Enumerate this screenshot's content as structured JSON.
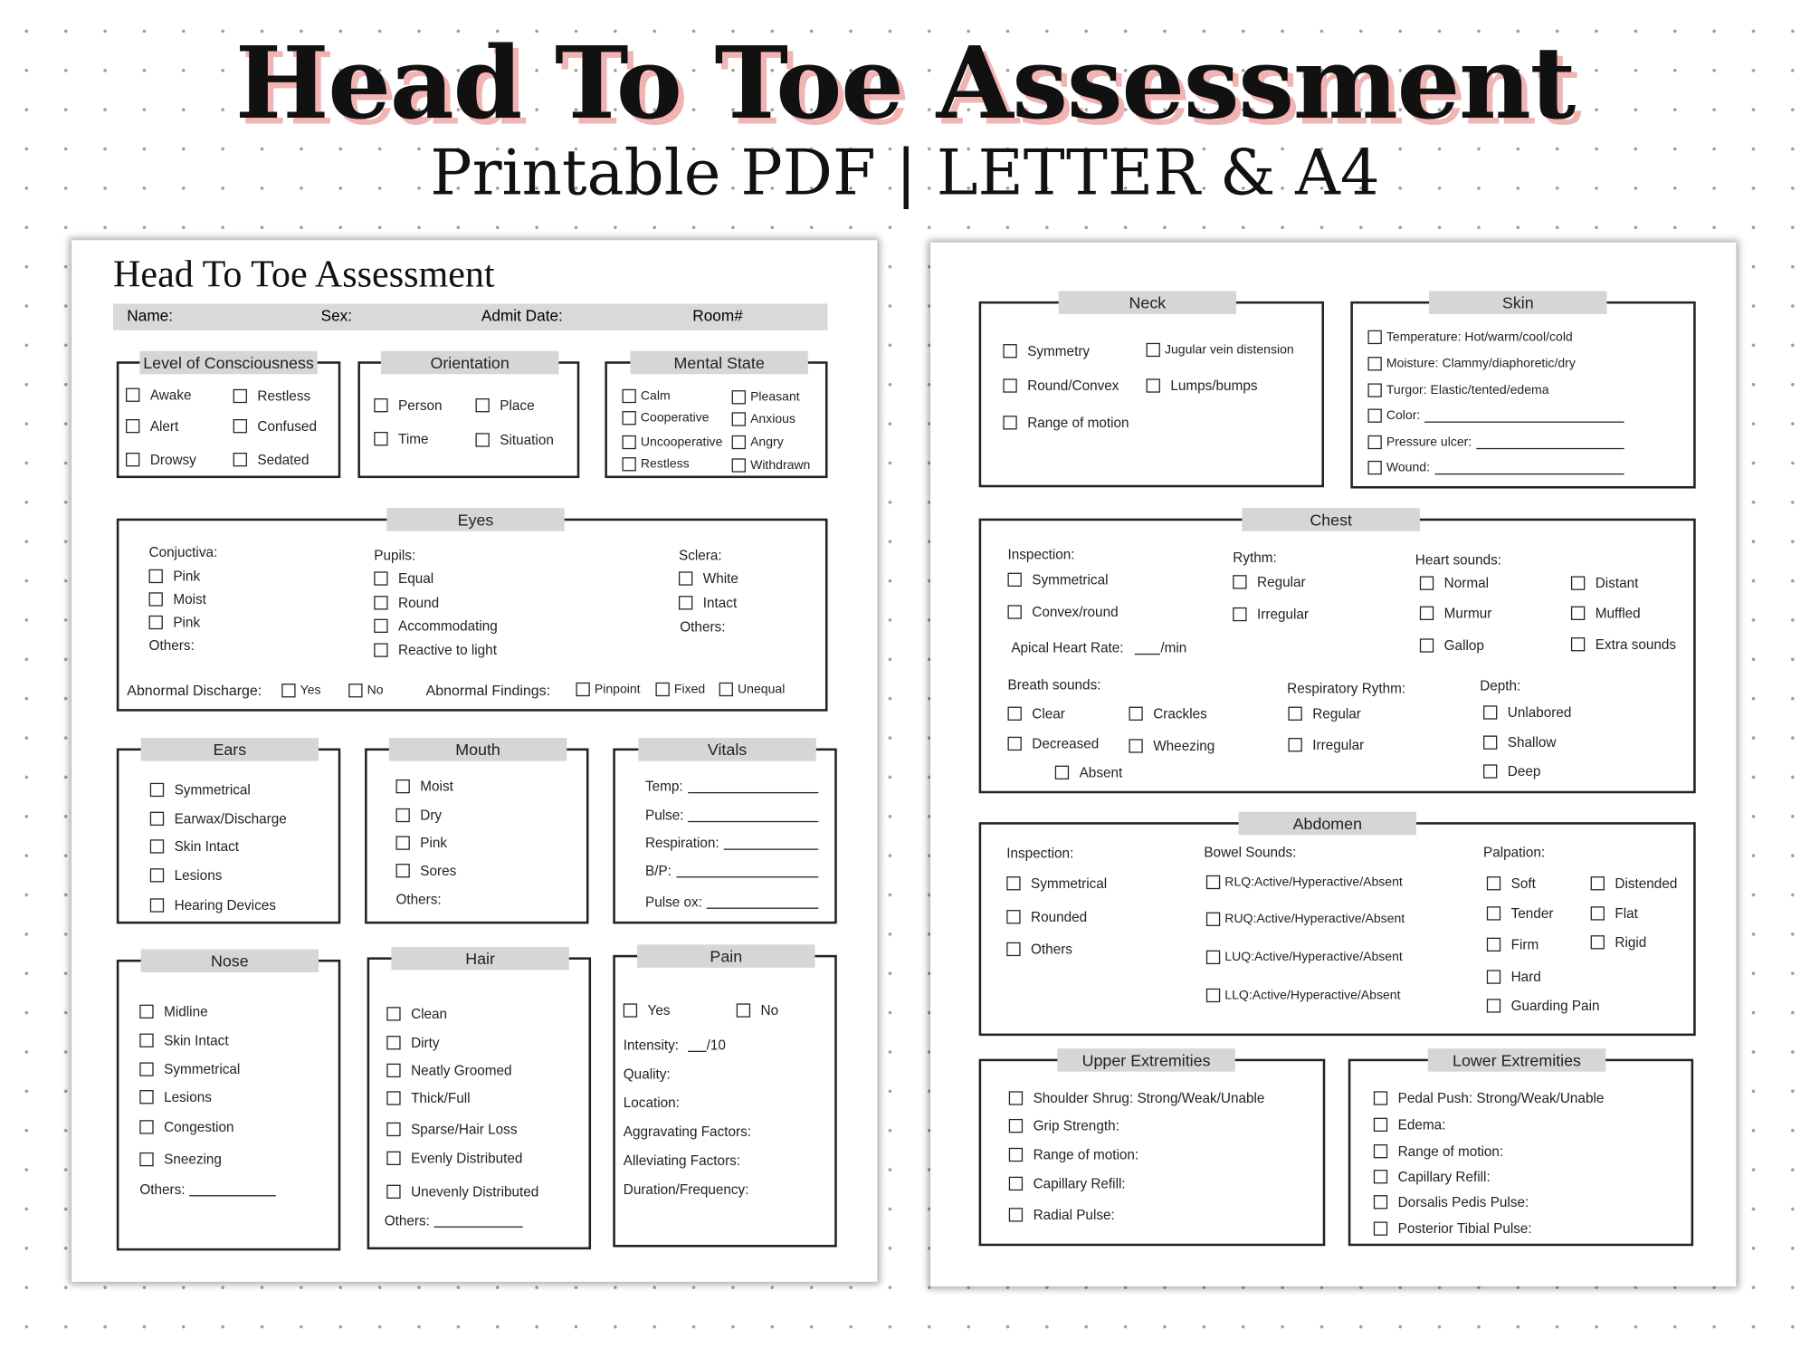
{
  "banner": {
    "title": "Head To Toe Assessment",
    "subtitle": "Printable PDF | LETTER & A4"
  },
  "page1": {
    "title": "Head To Toe Assessment",
    "info": {
      "name": "Name:",
      "sex": "Sex:",
      "admit": "Admit Date:",
      "room": "Room#"
    },
    "loc": {
      "title": "Level of Consciousness",
      "items": [
        "Awake",
        "Restless",
        "Alert",
        "Confused",
        "Drowsy",
        "Sedated"
      ]
    },
    "orientation": {
      "title": "Orientation",
      "items": [
        "Person",
        "Place",
        "Time",
        "Situation"
      ]
    },
    "mental": {
      "title": "Mental State",
      "items": [
        "Calm",
        "Pleasant",
        "Cooperative",
        "Anxious",
        "Uncooperative",
        "Angry",
        "Restless",
        "Withdrawn"
      ]
    },
    "eyes": {
      "title": "Eyes",
      "conj_label": "Conjuctiva:",
      "conj": [
        "Pink",
        "Moist",
        "Pink"
      ],
      "conj_others": "Others:",
      "pupils_label": "Pupils:",
      "pupils": [
        "Equal",
        "Round",
        "Accommodating",
        "Reactive to light"
      ],
      "sclera_label": "Sclera:",
      "sclera": [
        "White",
        "Intact"
      ],
      "sclera_others": "Others:",
      "discharge_label": "Abnormal Discharge:",
      "discharge": [
        "Yes",
        "No"
      ],
      "findings_label": "Abnormal Findings:",
      "findings": [
        "Pinpoint",
        "Fixed",
        "Unequal"
      ]
    },
    "ears": {
      "title": "Ears",
      "items": [
        "Symmetrical",
        "Earwax/Discharge",
        "Skin Intact",
        "Lesions",
        "Hearing Devices"
      ]
    },
    "mouth": {
      "title": "Mouth",
      "items": [
        "Moist",
        "Dry",
        "Pink",
        "Sores"
      ],
      "others": "Others:"
    },
    "vitals": {
      "title": "Vitals",
      "fields": [
        "Temp:",
        "Pulse:",
        "Respiration:",
        "B/P:",
        "Pulse ox:"
      ]
    },
    "nose": {
      "title": "Nose",
      "items": [
        "Midline",
        "Skin Intact",
        "Symmetrical",
        "Lesions",
        "Congestion",
        "Sneezing"
      ],
      "others": "Others:"
    },
    "hair": {
      "title": "Hair",
      "items": [
        "Clean",
        "Dirty",
        "Neatly Groomed",
        "Thick/Full",
        "Sparse/Hair Loss",
        "Evenly Distributed",
        "Unevenly Distributed"
      ],
      "others": "Others:"
    },
    "pain": {
      "title": "Pain",
      "items": [
        "Yes",
        "No"
      ],
      "intensity": "Intensity:",
      "intensity_unit": "/10",
      "fields": [
        "Quality:",
        "Location:",
        "Aggravating Factors:",
        "Alleviating Factors:",
        "Duration/Frequency:"
      ]
    }
  },
  "page2": {
    "neck": {
      "title": "Neck",
      "items": [
        "Symmetry",
        "Jugular vein distension",
        "Round/Convex",
        "Lumps/bumps",
        "Range of motion"
      ]
    },
    "skin": {
      "title": "Skin",
      "items": [
        "Temperature: Hot/warm/cool/cold",
        "Moisture: Clammy/diaphoretic/dry",
        "Turgor: Elastic/tented/edema",
        "Color:",
        "Pressure ulcer:",
        "Wound:"
      ]
    },
    "chest": {
      "title": "Chest",
      "inspection_label": "Inspection:",
      "inspection": [
        "Symmetrical",
        "Convex/round"
      ],
      "apical": "Apical Heart Rate:",
      "apical_unit": "/min",
      "rythm_label": "Rythm:",
      "rythm": [
        "Regular",
        "Irregular"
      ],
      "heart_label": "Heart sounds:",
      "heart": [
        "Normal",
        "Murmur",
        "Gallop",
        "Distant",
        "Muffled",
        "Extra sounds"
      ],
      "breath_label": "Breath sounds:",
      "breath": [
        "Clear",
        "Decreased",
        "Absent",
        "Crackles",
        "Wheezing"
      ],
      "resp_label": "Respiratory Rythm:",
      "resp": [
        "Regular",
        "Irregular"
      ],
      "depth_label": "Depth:",
      "depth": [
        "Unlabored",
        "Shallow",
        "Deep"
      ]
    },
    "abdomen": {
      "title": "Abdomen",
      "inspection_label": "Inspection:",
      "inspection": [
        "Symmetrical",
        "Rounded",
        "Others"
      ],
      "bowel_label": "Bowel Sounds:",
      "bowel": [
        "RLQ:Active/Hyperactive/Absent",
        "RUQ:Active/Hyperactive/Absent",
        "LUQ:Active/Hyperactive/Absent",
        "LLQ:Active/Hyperactive/Absent"
      ],
      "palp_label": "Palpation:",
      "palp": [
        "Soft",
        "Tender",
        "Firm",
        "Hard",
        "Guarding Pain",
        "Distended",
        "Flat",
        "Rigid"
      ]
    },
    "upper": {
      "title": "Upper Extremities",
      "items": [
        "Shoulder Shrug: Strong/Weak/Unable",
        "Grip Strength:",
        "Range of motion:",
        "Capillary Refill:",
        "Radial Pulse:"
      ]
    },
    "lower": {
      "title": "Lower Extremities",
      "items": [
        "Pedal Push: Strong/Weak/Unable",
        "Edema:",
        "Range of motion:",
        "Capillary Refill:",
        "Dorsalis Pedis Pulse:",
        "Posterior Tibial Pulse:"
      ]
    }
  }
}
